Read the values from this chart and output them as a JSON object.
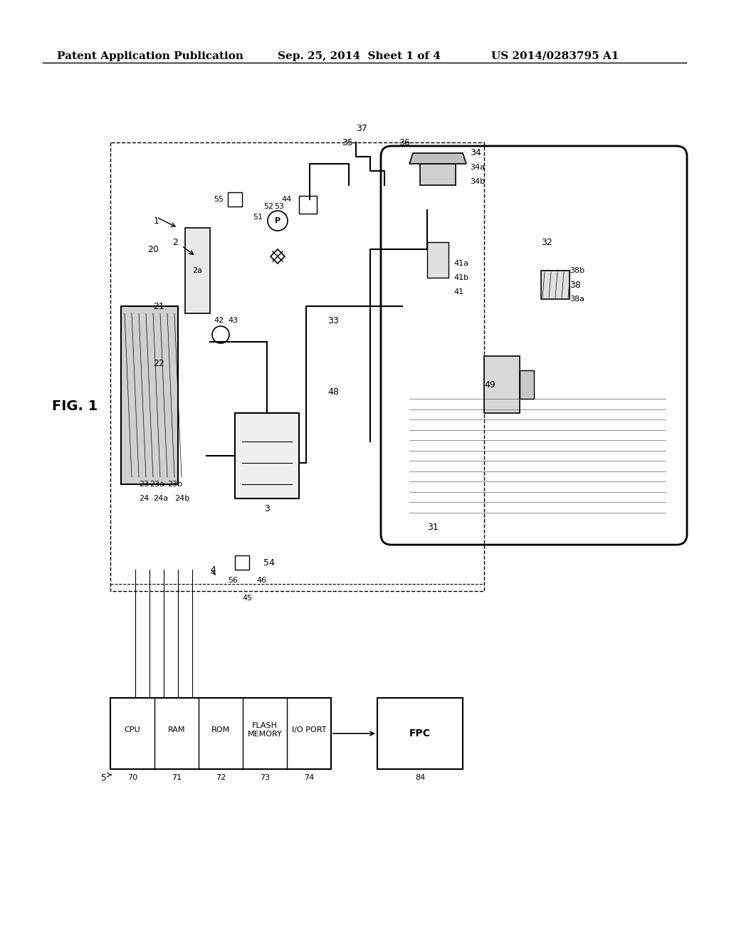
{
  "header_left": "Patent Application Publication",
  "header_center": "Sep. 25, 2014  Sheet 1 of 4",
  "header_right": "US 2014/0283795 A1",
  "fig_label": "FIG. 1",
  "background": "#ffffff",
  "line_color": "#000000",
  "text_color": "#000000",
  "header_fontsize": 11,
  "label_fontsize": 9,
  "fig_label_fontsize": 14
}
